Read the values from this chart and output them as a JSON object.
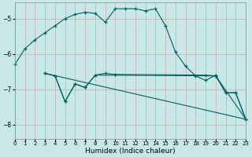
{
  "xlabel": "Humidex (Indice chaleur)",
  "background_color": "#c8e8e8",
  "grid_color": "#aacccc",
  "line_color": "#006060",
  "xlim": [
    0,
    23
  ],
  "ylim": [
    -8.4,
    -4.55
  ],
  "yticks": [
    -8,
    -7,
    -6,
    -5
  ],
  "xticks": [
    0,
    1,
    2,
    3,
    4,
    5,
    6,
    7,
    8,
    9,
    10,
    11,
    12,
    13,
    14,
    15,
    16,
    17,
    18,
    19,
    20,
    21,
    22,
    23
  ],
  "curve1": {
    "x": [
      0,
      1,
      2,
      3,
      4,
      5,
      6,
      7,
      8,
      9,
      10,
      11,
      12,
      13,
      14,
      15,
      16,
      17,
      18,
      19,
      20,
      21,
      22,
      23
    ],
    "y": [
      -6.3,
      -5.85,
      -5.6,
      -5.4,
      -5.2,
      -5.0,
      -4.88,
      -4.82,
      -4.85,
      -5.1,
      -4.72,
      -4.72,
      -4.72,
      -4.78,
      -4.72,
      -5.2,
      -5.95,
      -6.35,
      -6.62,
      -6.75,
      -6.6,
      -7.1,
      -7.1,
      -7.85
    ]
  },
  "curve2": {
    "x": [
      3,
      4,
      5,
      6,
      7,
      8,
      20,
      21,
      22,
      23
    ],
    "y": [
      -6.55,
      -6.62,
      -7.35,
      -6.85,
      -6.95,
      -6.6,
      -6.62,
      -7.1,
      -7.1,
      -7.85
    ]
  },
  "curve3": {
    "x": [
      3,
      4,
      5,
      6,
      7,
      8,
      9,
      10,
      19,
      20,
      23
    ],
    "y": [
      -6.55,
      -6.62,
      -7.35,
      -6.85,
      -6.95,
      -6.6,
      -6.55,
      -6.58,
      -6.6,
      -6.62,
      -7.85
    ]
  },
  "curve4": {
    "x": [
      3,
      23
    ],
    "y": [
      -6.55,
      -7.85
    ]
  }
}
